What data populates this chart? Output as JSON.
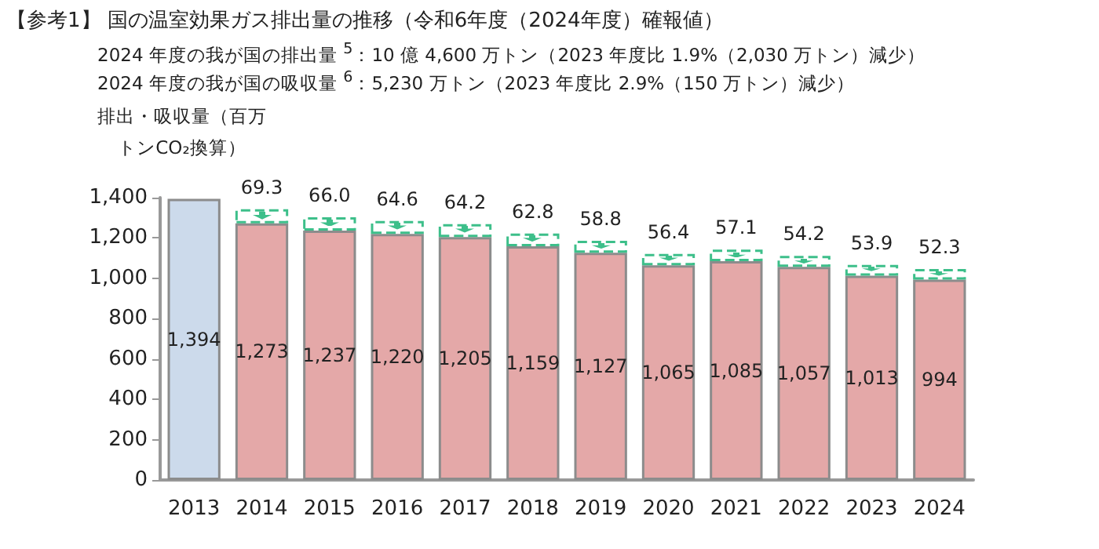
{
  "chart_data": {
    "type": "bar",
    "stacked": true,
    "title": "【参考1】 国の温室効果ガス排出量の推移（令和6年度（2024年度）確報値）",
    "annotations": [
      "2024 年度の我が国の排出量 $^{5}$：10 億 4,600 万トン（2023 年度比 1.9%（2,030 万トン）減少）",
      "2024 年度の我が国の吸収量 $^{6}$：5,230 万トン（2023 年度比 2.9%（150 万トン）減少）"
    ],
    "ylabel": "排出・吸収量（百万トンCO₂換算）",
    "categories": [
      "2013",
      "2014",
      "2015",
      "2016",
      "2017",
      "2018",
      "2019",
      "2020",
      "2021",
      "2022",
      "2023",
      "2024"
    ],
    "series": [
      {
        "colors": [
          "#ccdaeb",
          "#e4a8a8",
          "#e4a8a8",
          "#e4a8a8",
          "#e4a8a8",
          "#e4a8a8",
          "#e4a8a8",
          "#e4a8a8",
          "#e4a8a8",
          "#e4a8a8",
          "#e4a8a8",
          "#e4a8a8"
        ],
        "values": [
          1394,
          1273,
          1237,
          1220,
          1205,
          1159,
          1127,
          1065,
          1085,
          1057,
          1013,
          994
        ],
        "value_labels": [
          "1,394",
          "1,273",
          "1,237",
          "1,220",
          "1,205",
          "1,159",
          "1,127",
          "1,065",
          "1,085",
          "1,057",
          "1,013",
          "994"
        ]
      },
      {
        "color": "#3dbf8a",
        "values": [
          null,
          69.3,
          66.0,
          64.6,
          64.2,
          62.8,
          58.8,
          56.4,
          57.1,
          54.2,
          53.9,
          52.3
        ],
        "value_labels": [
          null,
          "69.3",
          "66.0",
          "64.6",
          "64.2",
          "62.8",
          "58.8",
          "56.4",
          "57.1",
          "54.2",
          "53.9",
          "52.3"
        ]
      }
    ],
    "ylim": [
      0,
      1400
    ],
    "yticks": [
      {
        "value": 0,
        "label": "0"
      },
      {
        "value": 200,
        "label": "200"
      },
      {
        "value": 400,
        "label": "400"
      },
      {
        "value": 600,
        "label": "600"
      },
      {
        "value": 800,
        "label": "800"
      },
      {
        "value": 1000,
        "label": "1,000"
      },
      {
        "value": 1200,
        "label": "1,200"
      },
      {
        "value": 1400,
        "label": "1,400"
      }
    ],
    "grid": false
  }
}
